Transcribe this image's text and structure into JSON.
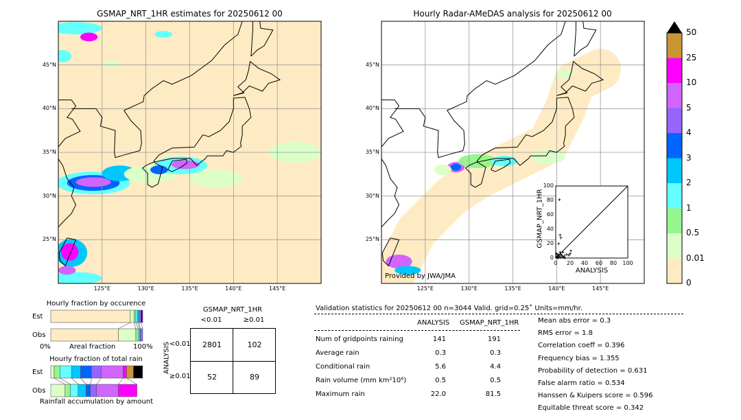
{
  "left_map": {
    "title": "GSMAP_NRT_1HR estimates for 20250612 00",
    "lon_ticks": [
      "125°E",
      "130°E",
      "135°E",
      "140°E",
      "145°E"
    ],
    "lat_ticks": [
      "45°N",
      "40°N",
      "35°N",
      "30°N",
      "25°N"
    ]
  },
  "right_map": {
    "title": "Hourly Radar-AMeDAS analysis for 20250612 00",
    "credit": "Provided by JWA/JMA",
    "lon_ticks": [
      "125°E",
      "130°E",
      "135°E",
      "140°E",
      "145°E"
    ],
    "lat_ticks": [
      "45°N",
      "40°N",
      "35°N",
      "30°N",
      "25°N"
    ]
  },
  "scatter": {
    "xlabel": "ANALYSIS",
    "ylabel": "GSMAP_NRT_1HR",
    "ticks": [
      "0",
      "20",
      "40",
      "60",
      "80",
      "100"
    ],
    "points": [
      [
        5,
        81
      ],
      [
        6,
        32
      ],
      [
        7,
        28
      ],
      [
        4,
        20
      ],
      [
        6,
        8
      ],
      [
        10,
        8
      ],
      [
        15,
        5
      ],
      [
        20,
        6
      ],
      [
        21,
        10
      ],
      [
        18,
        4
      ],
      [
        12,
        3
      ],
      [
        8,
        4
      ],
      [
        3,
        5
      ],
      [
        2,
        3
      ],
      [
        1,
        6
      ],
      [
        4,
        2
      ],
      [
        6,
        1
      ],
      [
        9,
        2
      ],
      [
        11,
        1
      ],
      [
        13,
        0
      ],
      [
        2,
        1
      ],
      [
        5,
        4
      ],
      [
        7,
        5
      ],
      [
        3,
        0
      ],
      [
        1,
        1
      ]
    ]
  },
  "colorbar": {
    "labels": [
      "50",
      "25",
      "10",
      "5",
      "4",
      "3",
      "2",
      "1",
      "0.5",
      "0.01",
      "0"
    ],
    "colors": [
      "#ffebc3",
      "#dcffc8",
      "#96f58c",
      "#64ffff",
      "#00c8ff",
      "#0064ff",
      "#9664ff",
      "#d264ff",
      "#ff00ff",
      "#c89632"
    ],
    "over_color": "#000000"
  },
  "occurrence": {
    "title": "Hourly fraction by occurence",
    "est_label": "Est",
    "obs_label": "Obs",
    "x0": "0%",
    "xlabel": "Areal fraction",
    "x1": "100%",
    "est": [
      0.865,
      0.04,
      0.02,
      0.02,
      0.015,
      0.02,
      0.02
    ],
    "obs": [
      0.735,
      0.19,
      0.025,
      0.015,
      0.01,
      0.025
    ],
    "colors": [
      "#ffebc3",
      "#dcffc8",
      "#96f58c",
      "#64ffff",
      "#00c8ff",
      "#9664ff",
      "#4b0082"
    ]
  },
  "rainfrac": {
    "title": "Hourly fraction of total rain",
    "est_label": "Est",
    "obs_label": "Obs",
    "xlabel": "Rainfall accumulation by amount",
    "est": [
      0.037,
      0.062,
      0.127,
      0.097,
      0.12,
      0.105,
      0.239,
      0.037,
      0.075,
      0.1
    ],
    "obs": [
      0.155,
      0.057,
      0.085,
      0.087,
      0.047,
      0.067,
      0.237,
      0.202
    ],
    "colors": [
      "#dcffc8",
      "#96f58c",
      "#64ffff",
      "#00c8ff",
      "#0064ff",
      "#9664ff",
      "#d264ff",
      "#ff00ff",
      "#c89632",
      "#000000"
    ]
  },
  "contingency": {
    "title": "GSMAP_NRT_1HR",
    "col1": "<0.01",
    "col2": "≥0.01",
    "row_axis": "ANALYSIS",
    "row1": "<0.01",
    "row2": "≥0.01",
    "a": "2801",
    "b": "102",
    "c": "52",
    "d": "89"
  },
  "stats": {
    "header": "Validation statistics for 20250612 00  n=3044 Valid. grid=0.25˚ Units=mm/hr.",
    "col1": "ANALYSIS",
    "col2": "GSMAP_NRT_1HR",
    "rows": [
      {
        "label": "Num of gridpoints raining",
        "a": "141",
        "g": "191"
      },
      {
        "label": "Average rain",
        "a": "0.3",
        "g": "0.3"
      },
      {
        "label": "Conditional rain",
        "a": "5.6",
        "g": "4.4"
      },
      {
        "label": "Rain volume (mm km²10⁶)",
        "a": "0.5",
        "g": "0.5"
      },
      {
        "label": "Maximum rain",
        "a": "22.0",
        "g": "81.5"
      }
    ],
    "scores": [
      "Mean abs error =    0.3",
      "RMS error =    1.8",
      "Correlation coeff =  0.396",
      "Frequency bias =  1.355",
      "Probability of detection =  0.631",
      "False alarm ratio =  0.534",
      "Hanssen & Kuipers score =  0.596",
      "Equitable threat score =  0.342"
    ]
  }
}
